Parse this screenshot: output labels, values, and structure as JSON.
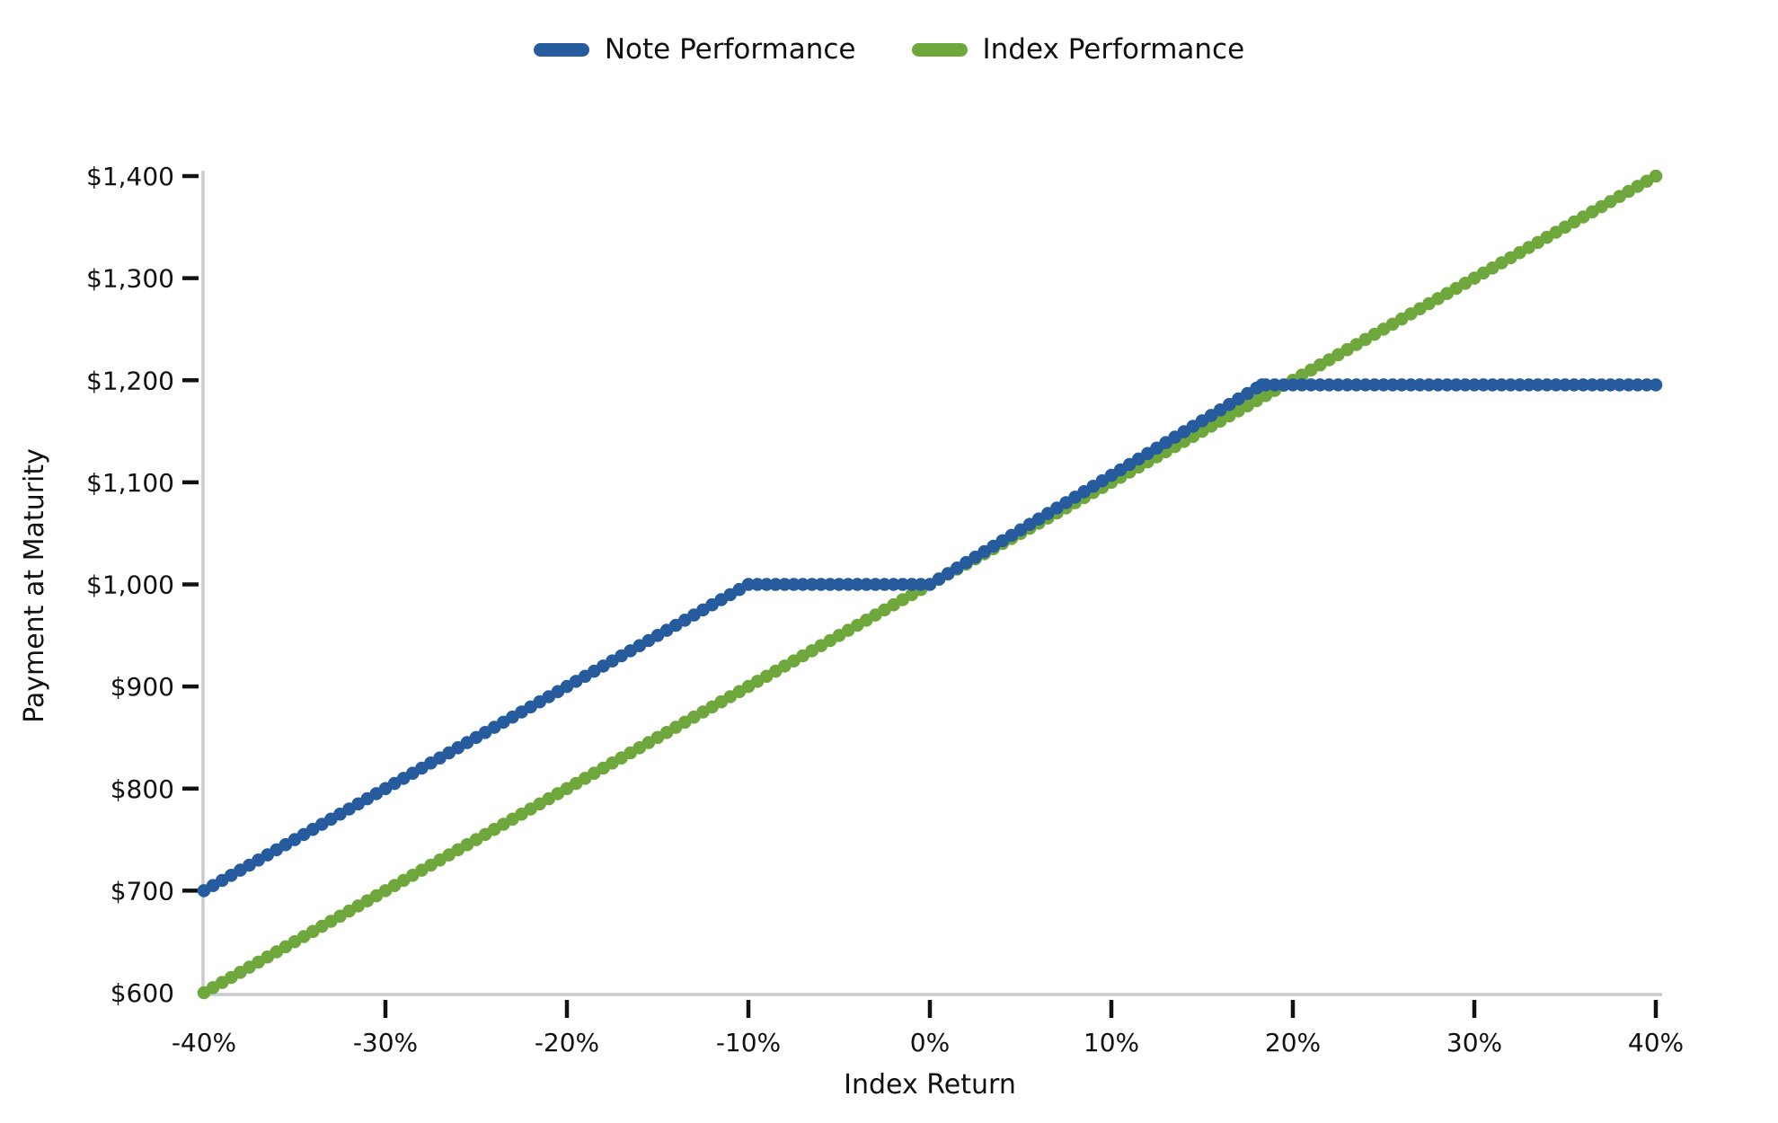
{
  "chart_data": {
    "type": "line",
    "title": "",
    "xlabel": "Index Return",
    "ylabel": "Payment at Maturity",
    "xlim": [
      -40,
      40
    ],
    "ylim": [
      600,
      1400
    ],
    "grid": false,
    "legend_position": "top-center",
    "x_ticks": [
      {
        "value": -40,
        "label": "-40%",
        "mark": false
      },
      {
        "value": -30,
        "label": "-30%",
        "mark": true
      },
      {
        "value": -20,
        "label": "-20%",
        "mark": true
      },
      {
        "value": -10,
        "label": "-10%",
        "mark": true
      },
      {
        "value": 0,
        "label": "0%",
        "mark": true
      },
      {
        "value": 10,
        "label": "10%",
        "mark": true
      },
      {
        "value": 20,
        "label": "20%",
        "mark": true
      },
      {
        "value": 30,
        "label": "30%",
        "mark": true
      },
      {
        "value": 40,
        "label": "40%",
        "mark": true
      }
    ],
    "y_ticks": [
      {
        "value": 600,
        "label": "$600",
        "mark": false
      },
      {
        "value": 700,
        "label": "$700",
        "mark": true
      },
      {
        "value": 800,
        "label": "$800",
        "mark": true
      },
      {
        "value": 900,
        "label": "$900",
        "mark": true
      },
      {
        "value": 1000,
        "label": "$1,000",
        "mark": true
      },
      {
        "value": 1100,
        "label": "$1,100",
        "mark": true
      },
      {
        "value": 1200,
        "label": "$1,200",
        "mark": true
      },
      {
        "value": 1300,
        "label": "$1,300",
        "mark": true
      },
      {
        "value": 1400,
        "label": "$1,400",
        "mark": true
      }
    ],
    "series": [
      {
        "name": "Note Performance",
        "color": "#265b9d",
        "breakpoints": [
          [
            -40,
            700
          ],
          [
            -10,
            1000
          ],
          [
            0,
            1000
          ],
          [
            18.3,
            1195.5
          ],
          [
            40,
            1195.5
          ]
        ]
      },
      {
        "name": "Index Performance",
        "color": "#6ea73c",
        "breakpoints": [
          [
            -40,
            600
          ],
          [
            40,
            1400
          ]
        ]
      }
    ],
    "colors": {
      "spine": "#c8cccf",
      "tick_mark": "#111111",
      "background": "#ffffff"
    }
  }
}
